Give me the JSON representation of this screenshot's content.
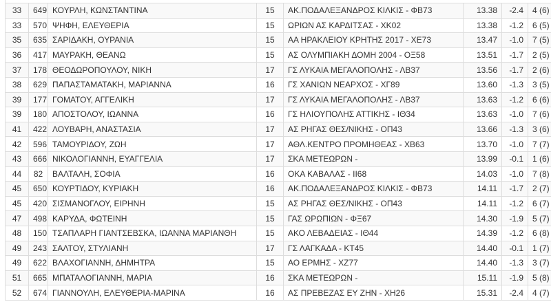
{
  "results": {
    "rows": [
      [
        "33",
        "649",
        "ΚΟΥΡΛΗ, ΚΩΝΣΤΑΝΤΙΝΑ",
        "15",
        "ΑΚ.ΠΟΔΑΛΕΞΑΝΔΡΟΣ ΚΙΛΚΙΣ - ΦΒ73",
        "13.38",
        "-2.4",
        "4 (6)"
      ],
      [
        "33",
        "570",
        "ΨΗΦΗ, ΕΛΕΥΘΕΡΙΑ",
        "15",
        "ΩΡΙΩΝ ΑΣ ΚΑΡΔΙΤΣΑΣ - ΧΚ02",
        "13.38",
        "-1.2",
        "6 (5)"
      ],
      [
        "35",
        "635",
        "ΣΑΡΙΔΑΚΗ, ΟΥΡΑΝΙΑ",
        "15",
        "ΑΑ ΗΡΑΚΛΕΙΟΥ ΚΡΗΤΗΣ 2017 - ΧΕ73",
        "13.47",
        "-1.0",
        "7 (5)"
      ],
      [
        "36",
        "417",
        "ΜΑΥΡΑΚΗ, ΘΕΑΝΩ",
        "15",
        "ΑΣ ΟΛΥΜΠΙΑΚΗ ΔΟΜΗ 2004 - ΟΞ58",
        "13.51",
        "-1.7",
        "2 (5)"
      ],
      [
        "37",
        "178",
        "ΘΕΟΔΩΡΟΠΟΥΛΟΥ, ΝΙΚΗ",
        "17",
        "ΓΣ ΛΥΚΑΙΑ ΜΕΓΑΛΟΠΟΛΗΣ - ΛΒ37",
        "13.56",
        "-1.7",
        "2 (6)"
      ],
      [
        "38",
        "629",
        "ΠΑΠΑΣΤΑΜΑΤΑΚΗ, ΜΑΡΙΑΝΝΑ",
        "16",
        "ΓΣ ΧΑΝΙΩΝ ΝΕΑΡΧΟΣ - ΧΓ89",
        "13.60",
        "-1.3",
        "3 (5)"
      ],
      [
        "39",
        "177",
        "ΓΟΜΑΤΟΥ, ΑΓΓΕΛΙΚΗ",
        "17",
        "ΓΣ ΛΥΚΑΙΑ ΜΕΓΑΛΟΠΟΛΗΣ - ΛΒ37",
        "13.63",
        "-1.2",
        "6 (6)"
      ],
      [
        "39",
        "180",
        "ΑΠΟΣΤΟΛΟΥ, ΙΩΑΝΝΑ",
        "16",
        "ΓΣ ΗΛΙΟΥΠΟΛΗΣ ΑΤΤΙΚΗΣ - ΙΘ34",
        "13.63",
        "-1.0",
        "7 (6)"
      ],
      [
        "41",
        "422",
        "ΛΟΥΒΑΡΗ, ΑΝΑΣΤΑΣΙΑ",
        "17",
        "ΑΣ ΡΗΓΑΣ ΘΕΣ/ΝΙΚΗΣ - ΟΠ43",
        "13.66",
        "-1.3",
        "3 (6)"
      ],
      [
        "42",
        "596",
        "ΤΑΜΟΥΡΙΔΟΥ, ΖΩΗ",
        "17",
        "ΑΘΛ.ΚΕΝΤΡΟ ΠΡΟΜΗΘΕΑΣ - ΧΒ63",
        "13.70",
        "-1.0",
        "7 (7)"
      ],
      [
        "43",
        "666",
        "ΝΙΚΟΛΟΓΙΑΝΝΗ, ΕΥΑΓΓΕΛΙΑ",
        "17",
        "ΣΚΑ ΜΕΤΕΩΡΩΝ -",
        "13.99",
        "-0.1",
        "1 (6)"
      ],
      [
        "44",
        "82",
        "ΒΑΛΤΑΛΗ, ΣΟΦΙΑ",
        "16",
        "ΟΚΑ ΚΑΒΑΛΑΣ - ΙΙ68",
        "14.03",
        "-1.0",
        "7 (8)"
      ],
      [
        "45",
        "650",
        "ΚΟΥΡΤΙΔΟΥ, ΚΥΡΙΑΚΗ",
        "16",
        "ΑΚ.ΠΟΔΑΛΕΞΑΝΔΡΟΣ ΚΙΛΚΙΣ - ΦΒ73",
        "14.11",
        "-1.7",
        "2 (7)"
      ],
      [
        "45",
        "420",
        "ΣΙΣΜΑΝΟΓΛΟΥ, ΕΙΡΗΝΗ",
        "15",
        "ΑΣ ΡΗΓΑΣ ΘΕΣ/ΝΙΚΗΣ - ΟΠ43",
        "14.11",
        "-1.2",
        "6 (7)"
      ],
      [
        "47",
        "498",
        "ΚΑΡΥΔΑ, ΦΩΤΕΙΝΗ",
        "15",
        "ΓΑΣ ΩΡΩΠΙΩΝ - ΦΞ67",
        "14.30",
        "-1.9",
        "5 (7)"
      ],
      [
        "48",
        "150",
        "ΤΣΑΠΛΑΡΗ ΓΙΑΝΤΣΕΒΣΚΑ, ΙΩΑΝΝΑ ΜΑΡΙΑΝΘΗ",
        "15",
        "ΑΚΟ ΛΕΒΑΔΕΙΑΣ - ΙΘ44",
        "14.39",
        "-1.2",
        "6 (8)"
      ],
      [
        "49",
        "243",
        "ΣΑΛΤΟΥ, ΣΤΥΛΙΑΝΗ",
        "17",
        "ΓΣ ΛΑΓΚΑΔΑ - ΚΤ45",
        "14.40",
        "-0.1",
        "1 (7)"
      ],
      [
        "49",
        "622",
        "ΒΛΑΧΟΓΙΑΝΝΗ, ΔΗΜΗΤΡΑ",
        "15",
        "ΑΟ ΕΡΜΗΣ - ΧΖ77",
        "14.40",
        "-1.3",
        "3 (7)"
      ],
      [
        "51",
        "665",
        "ΜΠΑΤΑΛΟΓΙΑΝΝΗ, ΜΑΡΙΑ",
        "16",
        "ΣΚΑ ΜΕΤΕΩΡΩΝ -",
        "15.11",
        "-1.9",
        "5 (8)"
      ],
      [
        "52",
        "674",
        "ΓΙΑΝΝΟΥΛΗ, ΕΛΕΥΘΕΡΙΑ-ΜΑΡΙΝΑ",
        "16",
        "ΑΣ ΠΡΕΒΕΖΑΣ ΕΥ ΖΗΝ - ΧΗ26",
        "15.31",
        "-2.4",
        "4 (7)"
      ]
    ]
  }
}
